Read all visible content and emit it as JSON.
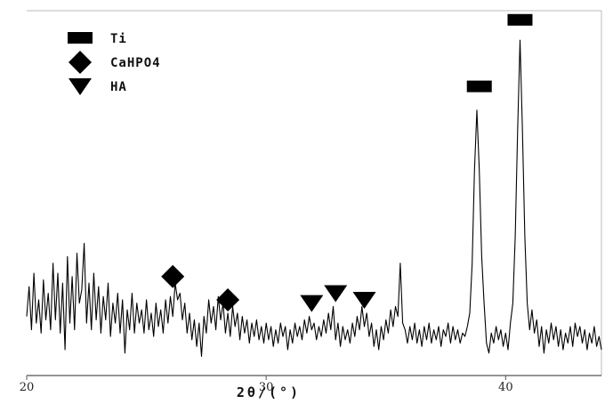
{
  "chart_data": {
    "type": "line",
    "title": "",
    "xlabel": "2θ/(°)",
    "ylabel": "",
    "xlim": [
      20,
      44
    ],
    "ylim": [
      0,
      100
    ],
    "x_ticks": [
      20,
      30,
      40
    ],
    "x_tick_labels": [
      "20",
      "30",
      "40"
    ],
    "grid": false,
    "line_color": "#000000",
    "legend": {
      "placement": "top-left",
      "entries": [
        {
          "label": "Ti",
          "marker": "rectangle"
        },
        {
          "label": "CaHPO4",
          "marker": "diamond"
        },
        {
          "label": "HA",
          "marker": "triangle-down"
        }
      ]
    },
    "series": [
      {
        "points": [
          [
            20.0,
            14
          ],
          [
            20.1,
            23
          ],
          [
            20.2,
            10
          ],
          [
            20.3,
            27
          ],
          [
            20.4,
            12
          ],
          [
            20.5,
            19
          ],
          [
            20.6,
            9
          ],
          [
            20.7,
            25
          ],
          [
            20.8,
            13
          ],
          [
            20.9,
            21
          ],
          [
            21.0,
            10
          ],
          [
            21.1,
            30
          ],
          [
            21.2,
            13
          ],
          [
            21.3,
            27
          ],
          [
            21.4,
            9
          ],
          [
            21.5,
            24
          ],
          [
            21.6,
            4
          ],
          [
            21.7,
            32
          ],
          [
            21.8,
            12
          ],
          [
            21.9,
            26
          ],
          [
            22.0,
            10
          ],
          [
            22.1,
            33
          ],
          [
            22.2,
            18
          ],
          [
            22.3,
            22
          ],
          [
            22.4,
            36
          ],
          [
            22.5,
            12
          ],
          [
            22.6,
            24
          ],
          [
            22.7,
            10
          ],
          [
            22.8,
            27
          ],
          [
            22.9,
            13
          ],
          [
            23.0,
            23
          ],
          [
            23.1,
            9
          ],
          [
            23.2,
            20
          ],
          [
            23.3,
            13
          ],
          [
            23.4,
            24
          ],
          [
            23.5,
            8
          ],
          [
            23.6,
            18
          ],
          [
            23.7,
            12
          ],
          [
            23.8,
            21
          ],
          [
            23.9,
            9
          ],
          [
            24.0,
            19
          ],
          [
            24.1,
            3
          ],
          [
            24.2,
            16
          ],
          [
            24.3,
            10
          ],
          [
            24.4,
            21
          ],
          [
            24.5,
            9
          ],
          [
            24.6,
            18
          ],
          [
            24.7,
            12
          ],
          [
            24.8,
            16
          ],
          [
            24.9,
            9
          ],
          [
            25.0,
            19
          ],
          [
            25.1,
            10
          ],
          [
            25.2,
            15
          ],
          [
            25.3,
            8
          ],
          [
            25.4,
            18
          ],
          [
            25.5,
            11
          ],
          [
            25.6,
            16
          ],
          [
            25.7,
            9
          ],
          [
            25.8,
            19
          ],
          [
            25.9,
            12
          ],
          [
            26.0,
            20
          ],
          [
            26.1,
            14
          ],
          [
            26.2,
            24
          ],
          [
            26.3,
            19
          ],
          [
            26.4,
            21
          ],
          [
            26.5,
            13
          ],
          [
            26.6,
            18
          ],
          [
            26.7,
            9
          ],
          [
            26.8,
            15
          ],
          [
            26.9,
            7
          ],
          [
            27.0,
            13
          ],
          [
            27.1,
            5
          ],
          [
            27.2,
            12
          ],
          [
            27.3,
            2
          ],
          [
            27.4,
            14
          ],
          [
            27.5,
            9
          ],
          [
            27.6,
            19
          ],
          [
            27.7,
            12
          ],
          [
            27.8,
            17
          ],
          [
            27.9,
            10
          ],
          [
            28.0,
            20
          ],
          [
            28.1,
            13
          ],
          [
            28.2,
            18
          ],
          [
            28.3,
            9
          ],
          [
            28.4,
            15
          ],
          [
            28.5,
            8
          ],
          [
            28.6,
            17
          ],
          [
            28.7,
            11
          ],
          [
            28.8,
            15
          ],
          [
            28.9,
            7
          ],
          [
            29.0,
            14
          ],
          [
            29.1,
            9
          ],
          [
            29.2,
            13
          ],
          [
            29.3,
            6
          ],
          [
            29.4,
            12
          ],
          [
            29.5,
            8
          ],
          [
            29.6,
            13
          ],
          [
            29.7,
            7
          ],
          [
            29.8,
            11
          ],
          [
            29.9,
            6
          ],
          [
            30.0,
            12
          ],
          [
            30.1,
            7
          ],
          [
            30.2,
            11
          ],
          [
            30.3,
            5
          ],
          [
            30.4,
            10
          ],
          [
            30.5,
            6
          ],
          [
            30.6,
            12
          ],
          [
            30.7,
            8
          ],
          [
            30.8,
            11
          ],
          [
            30.9,
            4
          ],
          [
            31.0,
            10
          ],
          [
            31.1,
            6
          ],
          [
            31.2,
            12
          ],
          [
            31.3,
            8
          ],
          [
            31.4,
            11
          ],
          [
            31.5,
            7
          ],
          [
            31.6,
            13
          ],
          [
            31.7,
            9
          ],
          [
            31.8,
            14
          ],
          [
            31.9,
            10
          ],
          [
            32.0,
            12
          ],
          [
            32.1,
            7
          ],
          [
            32.2,
            11
          ],
          [
            32.3,
            8
          ],
          [
            32.4,
            13
          ],
          [
            32.5,
            9
          ],
          [
            32.6,
            15
          ],
          [
            32.7,
            10
          ],
          [
            32.8,
            17
          ],
          [
            32.9,
            7
          ],
          [
            33.0,
            12
          ],
          [
            33.1,
            5
          ],
          [
            33.2,
            11
          ],
          [
            33.3,
            7
          ],
          [
            33.4,
            10
          ],
          [
            33.5,
            6
          ],
          [
            33.6,
            12
          ],
          [
            33.7,
            8
          ],
          [
            33.8,
            14
          ],
          [
            33.9,
            10
          ],
          [
            34.0,
            17
          ],
          [
            34.1,
            11
          ],
          [
            34.2,
            15
          ],
          [
            34.3,
            8
          ],
          [
            34.4,
            12
          ],
          [
            34.5,
            5
          ],
          [
            34.6,
            10
          ],
          [
            34.7,
            4
          ],
          [
            34.8,
            11
          ],
          [
            34.9,
            7
          ],
          [
            35.0,
            13
          ],
          [
            35.1,
            9
          ],
          [
            35.2,
            16
          ],
          [
            35.3,
            11
          ],
          [
            35.4,
            17
          ],
          [
            35.5,
            14
          ],
          [
            35.6,
            30
          ],
          [
            35.7,
            12
          ],
          [
            35.8,
            10
          ],
          [
            35.9,
            6
          ],
          [
            36.0,
            11
          ],
          [
            36.1,
            7
          ],
          [
            36.2,
            12
          ],
          [
            36.3,
            6
          ],
          [
            36.4,
            10
          ],
          [
            36.5,
            5
          ],
          [
            36.6,
            11
          ],
          [
            36.7,
            7
          ],
          [
            36.8,
            12
          ],
          [
            36.9,
            6
          ],
          [
            37.0,
            10
          ],
          [
            37.1,
            7
          ],
          [
            37.2,
            11
          ],
          [
            37.3,
            5
          ],
          [
            37.4,
            10
          ],
          [
            37.5,
            8
          ],
          [
            37.6,
            12
          ],
          [
            37.7,
            6
          ],
          [
            37.8,
            11
          ],
          [
            37.9,
            7
          ],
          [
            38.0,
            10
          ],
          [
            38.1,
            6
          ],
          [
            38.2,
            9
          ],
          [
            38.3,
            8
          ],
          [
            38.4,
            11
          ],
          [
            38.5,
            15
          ],
          [
            38.6,
            30
          ],
          [
            38.7,
            58
          ],
          [
            38.8,
            76
          ],
          [
            38.9,
            58
          ],
          [
            39.0,
            32
          ],
          [
            39.1,
            18
          ],
          [
            39.2,
            6
          ],
          [
            39.3,
            3
          ],
          [
            39.4,
            9
          ],
          [
            39.5,
            6
          ],
          [
            39.6,
            11
          ],
          [
            39.7,
            7
          ],
          [
            39.8,
            10
          ],
          [
            39.9,
            5
          ],
          [
            40.0,
            9
          ],
          [
            40.1,
            4
          ],
          [
            40.2,
            12
          ],
          [
            40.3,
            18
          ],
          [
            40.4,
            38
          ],
          [
            40.5,
            70
          ],
          [
            40.6,
            97
          ],
          [
            40.7,
            70
          ],
          [
            40.8,
            38
          ],
          [
            40.9,
            18
          ],
          [
            41.0,
            10
          ],
          [
            41.1,
            16
          ],
          [
            41.2,
            9
          ],
          [
            41.3,
            13
          ],
          [
            41.4,
            5
          ],
          [
            41.5,
            11
          ],
          [
            41.6,
            3
          ],
          [
            41.7,
            10
          ],
          [
            41.8,
            6
          ],
          [
            41.9,
            12
          ],
          [
            42.0,
            7
          ],
          [
            42.1,
            11
          ],
          [
            42.2,
            5
          ],
          [
            42.3,
            10
          ],
          [
            42.4,
            4
          ],
          [
            42.5,
            9
          ],
          [
            42.6,
            6
          ],
          [
            42.7,
            11
          ],
          [
            42.8,
            5
          ],
          [
            42.9,
            12
          ],
          [
            43.0,
            8
          ],
          [
            43.1,
            11
          ],
          [
            43.2,
            6
          ],
          [
            43.3,
            10
          ],
          [
            43.4,
            4
          ],
          [
            43.5,
            9
          ],
          [
            43.6,
            6
          ],
          [
            43.7,
            11
          ],
          [
            43.8,
            5
          ],
          [
            43.9,
            8
          ],
          [
            44.0,
            4
          ]
        ]
      }
    ],
    "annotations": [
      {
        "marker": "rectangle",
        "x": 38.9,
        "y": 83
      },
      {
        "marker": "rectangle",
        "x": 40.6,
        "y": 103
      },
      {
        "marker": "diamond",
        "x": 26.1,
        "y": 26
      },
      {
        "marker": "diamond",
        "x": 28.4,
        "y": 19
      },
      {
        "marker": "triangle-down",
        "x": 31.9,
        "y": 18
      },
      {
        "marker": "triangle-down",
        "x": 32.9,
        "y": 21
      },
      {
        "marker": "triangle-down",
        "x": 34.1,
        "y": 19
      }
    ]
  }
}
